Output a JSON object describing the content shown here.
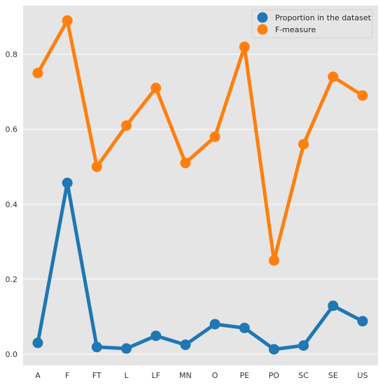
{
  "chart_data": {
    "type": "line",
    "categories": [
      "A",
      "F",
      "FT",
      "L",
      "LF",
      "MN",
      "O",
      "PE",
      "PO",
      "SC",
      "SE",
      "US"
    ],
    "series": [
      {
        "name": "Proportion in the dataset",
        "color": "#1f77b4",
        "values": [
          0.03,
          0.457,
          0.019,
          0.015,
          0.049,
          0.025,
          0.08,
          0.07,
          0.013,
          0.023,
          0.129,
          0.088
        ]
      },
      {
        "name": "F-measure",
        "color": "#ff7f0e",
        "values": [
          0.75,
          0.89,
          0.5,
          0.61,
          0.71,
          0.51,
          0.58,
          0.82,
          0.25,
          0.56,
          0.74,
          0.69
        ]
      }
    ],
    "yticks": [
      "0.0",
      "0.2",
      "0.4",
      "0.6",
      "0.8"
    ],
    "ylim": [
      -0.03,
      0.93
    ],
    "grid": true,
    "legend": "top-right",
    "background": "#e5e5e5",
    "gridColor": "#ffffff"
  }
}
